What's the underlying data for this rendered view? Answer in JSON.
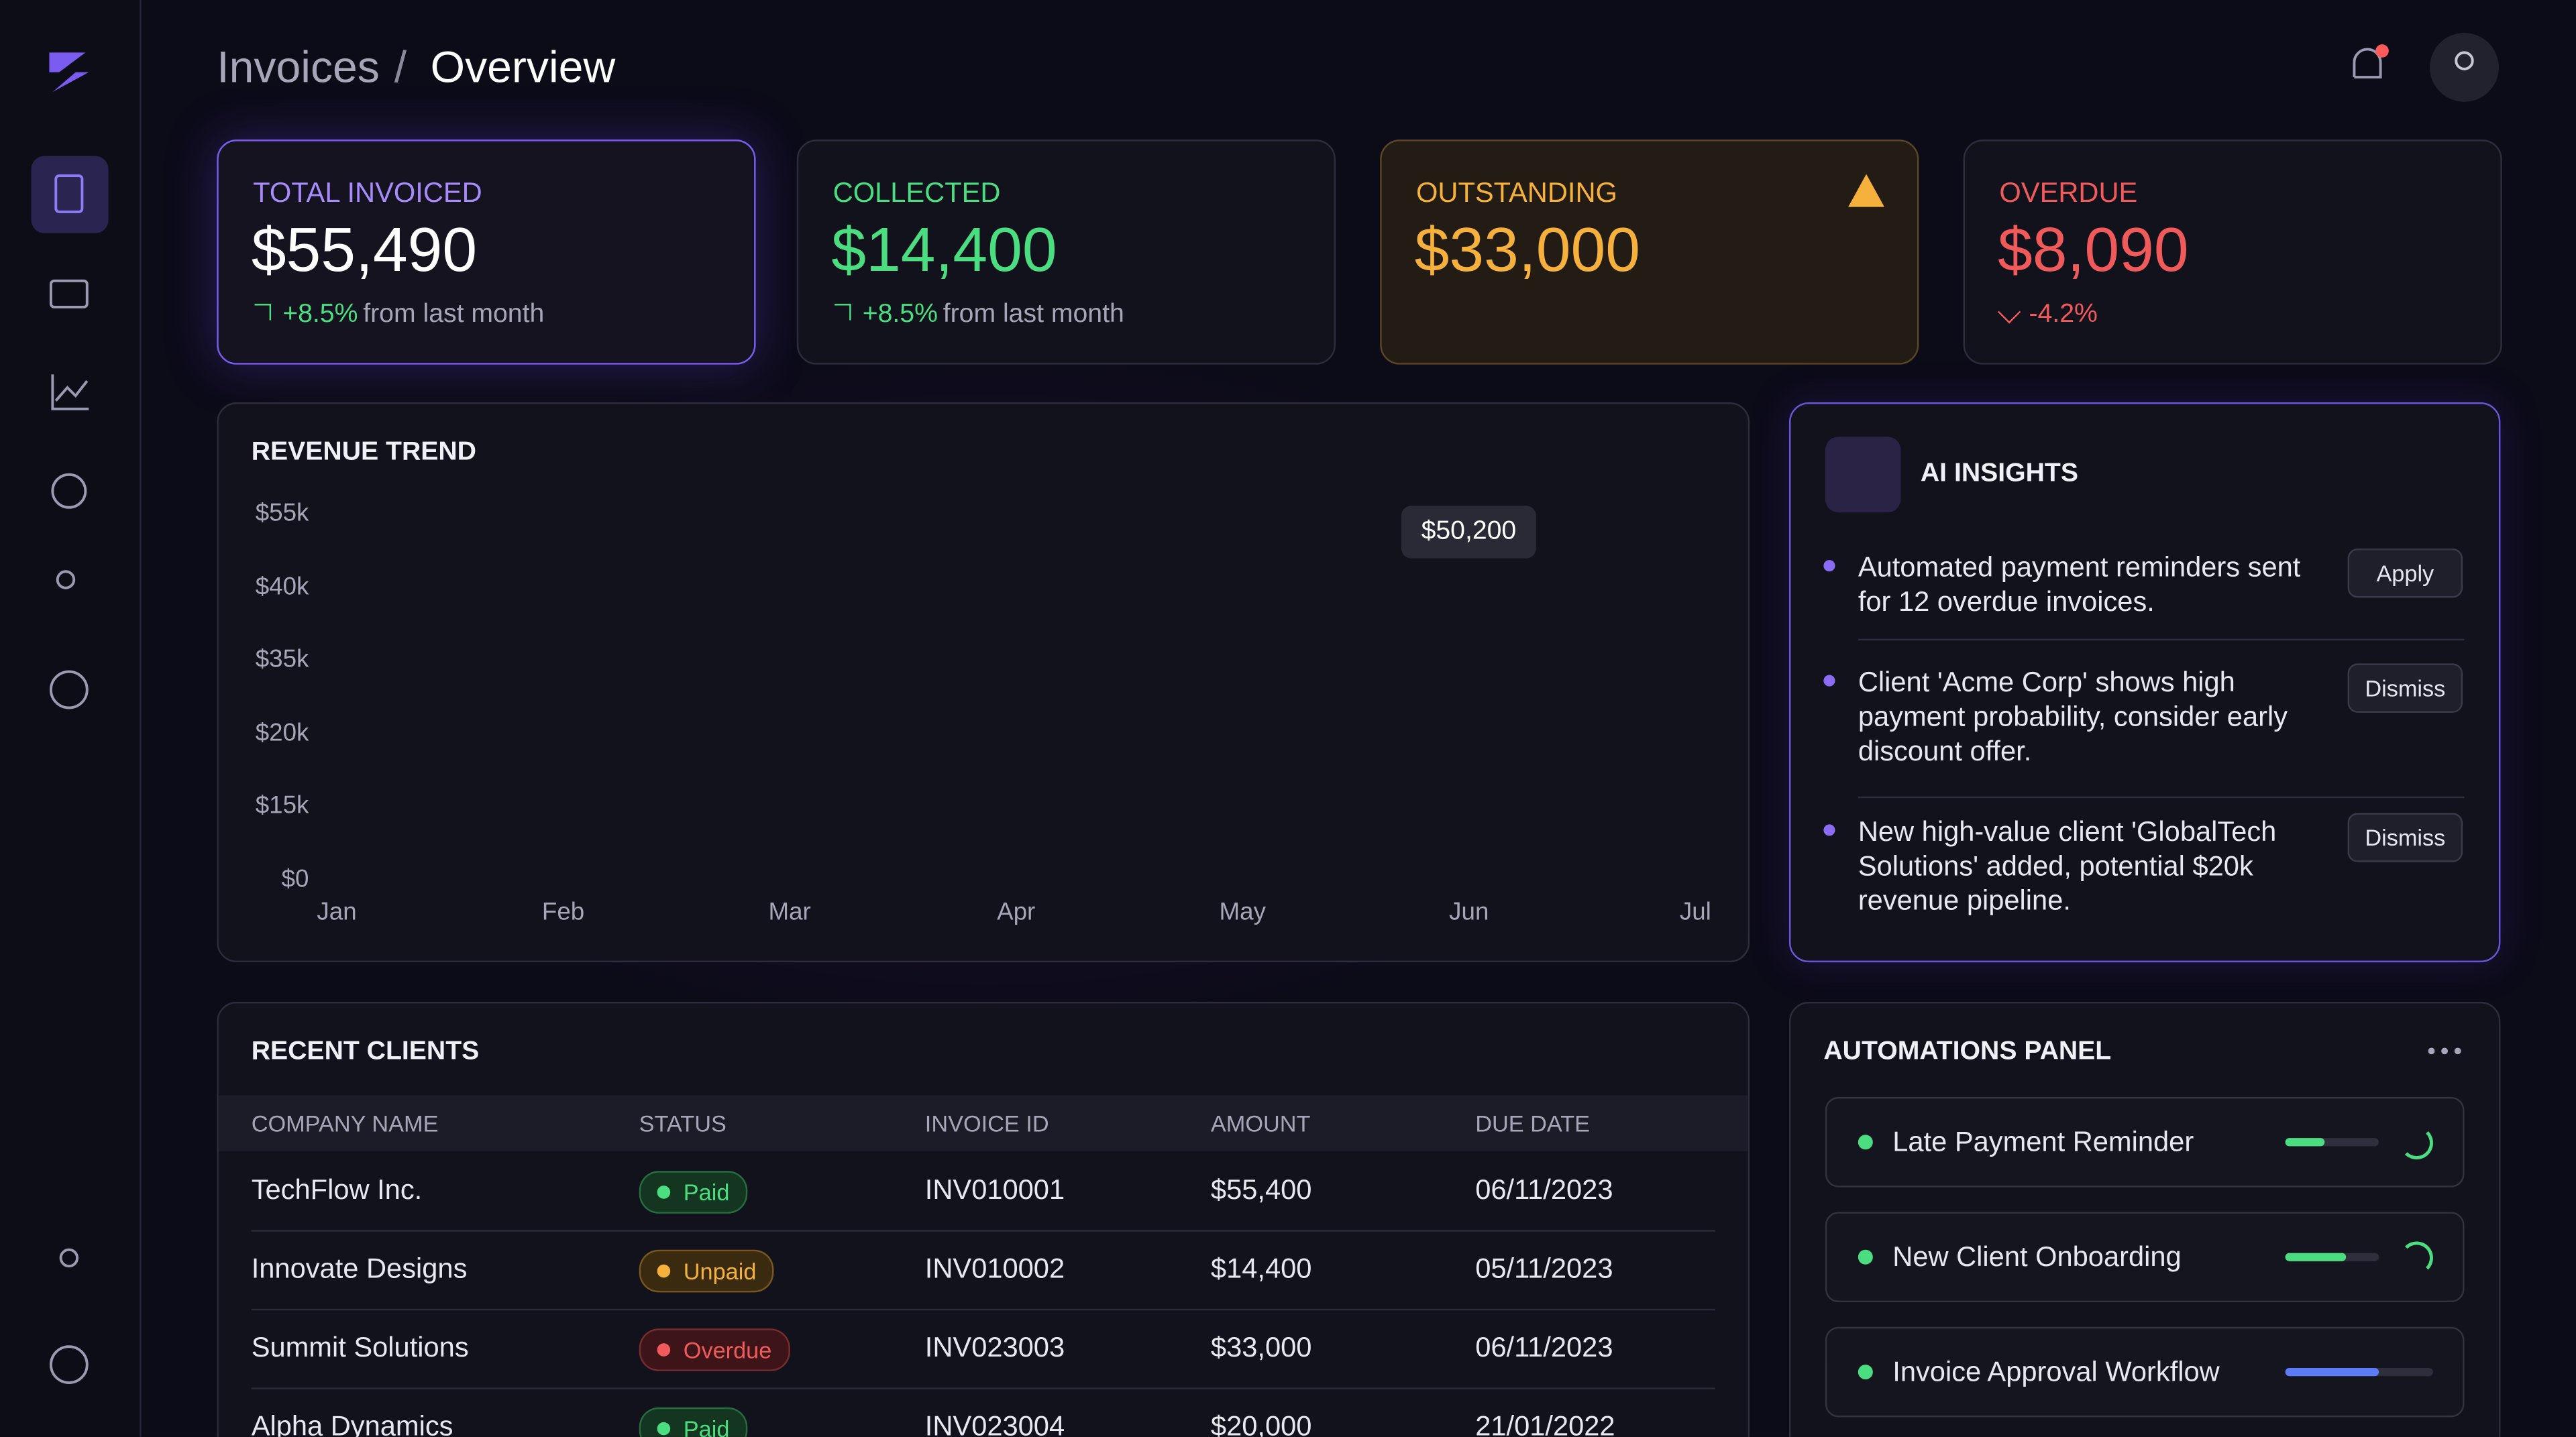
{
  "breadcrumb": {
    "parent": "Invoices",
    "separator": "/",
    "current": "Overview"
  },
  "kpis": [
    {
      "label": "TOTAL INVOICED",
      "value": "$55,490",
      "change": "+8.5%",
      "note": "from last month"
    },
    {
      "label": "COLLECTED",
      "value": "$14,400",
      "change": "+8.5%",
      "note": "from last month"
    },
    {
      "label": "OUTSTANDING",
      "value": "$33,000"
    },
    {
      "label": "OVERDUE",
      "value": "$8,090",
      "change": "-4.2%"
    }
  ],
  "revenue": {
    "title": "REVENUE TREND",
    "yticks": [
      "$55k",
      "$40k",
      "$35k",
      "$20k",
      "$15k",
      "$0"
    ],
    "months": [
      "Jan",
      "Feb",
      "Mar",
      "Apr",
      "May",
      "Jun",
      "Jul"
    ],
    "tooltip": "$50,200"
  },
  "insights": {
    "title": "AI INSIGHTS",
    "items": [
      {
        "text": "Automated payment reminders sent for 12 overdue invoices.",
        "action": "Apply"
      },
      {
        "text": "Client 'Acme Corp' shows high payment probability, consider early discount offer.",
        "action": "Dismiss"
      },
      {
        "text": "New high-value client 'GlobalTech Solutions' added, potential $20k revenue pipeline.",
        "action": "Dismiss"
      }
    ]
  },
  "clients": {
    "title": "RECENT CLIENTS",
    "columns": [
      "COMPANY NAME",
      "STATUS",
      "INVOICE ID",
      "AMOUNT",
      "DUE DATE"
    ],
    "rows": [
      [
        "TechFlow Inc.",
        "Paid",
        "INV010001",
        "$55,400",
        "06/11/2023"
      ],
      [
        "Innovate Designs",
        "Unpaid",
        "INV010002",
        "$14,400",
        "05/11/2023"
      ],
      [
        "Summit Solutions",
        "Overdue",
        "INV023003",
        "$33,000",
        "06/11/2023"
      ],
      [
        "Alpha Dynamics",
        "Paid",
        "INV023004",
        "$20,000",
        "21/01/2022"
      ]
    ]
  },
  "automations": {
    "title": "AUTOMATIONS PANEL",
    "items": [
      "Late Payment Reminder",
      "New Client Onboarding",
      "Invoice Approval Workflow"
    ]
  }
}
